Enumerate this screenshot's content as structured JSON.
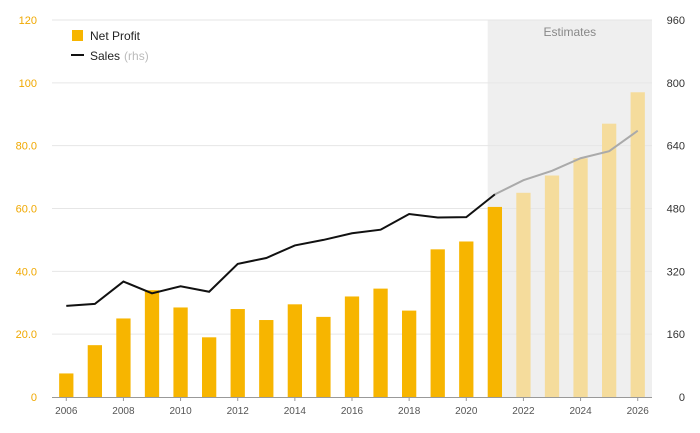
{
  "chart_data": {
    "type": "bar+line",
    "x": [
      2006,
      2007,
      2008,
      2009,
      2010,
      2011,
      2012,
      2013,
      2014,
      2015,
      2016,
      2017,
      2018,
      2019,
      2020,
      2021,
      2022,
      2023,
      2024,
      2025,
      2026
    ],
    "x_tick_labels": [
      "2006",
      "2008",
      "2010",
      "2012",
      "2014",
      "2016",
      "2018",
      "2020",
      "2022",
      "2024",
      "2026"
    ],
    "series": [
      {
        "name": "Net Profit",
        "type": "bar",
        "axis": "left",
        "values": [
          7.5,
          16.5,
          25,
          34,
          28.5,
          19,
          28,
          24.5,
          29.5,
          25.5,
          32,
          34.5,
          27.5,
          47,
          49.5,
          60.5,
          65,
          70.5,
          76,
          87,
          97
        ],
        "color": "#f7b500",
        "estimate_color": "#f5dc9c"
      },
      {
        "name": "Sales",
        "name_suffix": "(rhs)",
        "type": "line",
        "axis": "right",
        "values": [
          232,
          237,
          294,
          264,
          282,
          268,
          339,
          354,
          386,
          400,
          417,
          426,
          466,
          457,
          458,
          516,
          552,
          576,
          608,
          626,
          678
        ],
        "color": "#111111",
        "estimate_color": "#aaaaaa"
      }
    ],
    "y_left": {
      "ylim": [
        0,
        120
      ],
      "tick_labels": [
        "0",
        "20.0",
        "40.0",
        "60.0",
        "80.0",
        "100",
        "120"
      ],
      "tick_values": [
        0,
        20,
        40,
        60,
        80,
        100,
        120
      ]
    },
    "y_right": {
      "ylim": [
        0,
        960
      ],
      "tick_labels": [
        "0",
        "160",
        "320",
        "480",
        "640",
        "800",
        "960"
      ],
      "tick_values": [
        0,
        160,
        320,
        480,
        640,
        800,
        960
      ]
    },
    "estimates": {
      "label": "Estimates",
      "start_x": 2021,
      "first_estimate_year": 2022
    },
    "grid": true,
    "legend_position": "top-left"
  }
}
